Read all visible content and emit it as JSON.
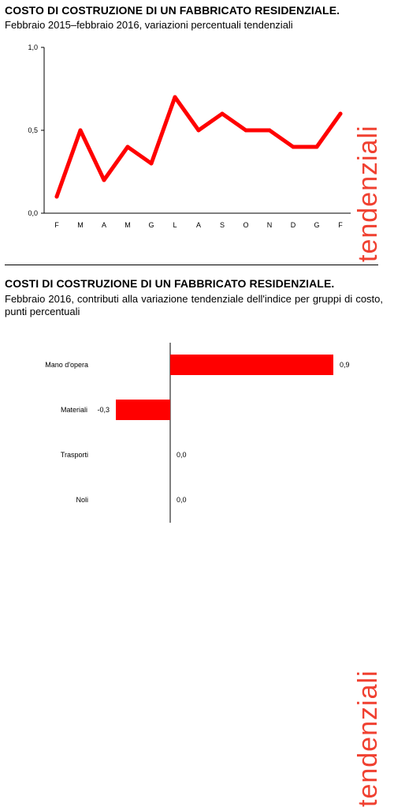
{
  "panel1": {
    "title": "COSTO DI COSTRUZIONE DI UN FABBRICATO RESIDENZIALE.",
    "subtitle": "Febbraio 2015–febbraio 2016, variazioni percentuali tendenziali",
    "side_label": "tendenziali"
  },
  "panel2": {
    "title": "COSTI DI COSTRUZIONE DI UN FABBRICATO RESIDENZIALE.",
    "subtitle": "Febbraio 2016, contributi alla variazione tendenziale dell'indice per gruppi di costo, punti percentuali",
    "side_label": "tendenziali"
  },
  "colors": {
    "series": "#ff0000",
    "side_label": "#f04030"
  },
  "chart_data": [
    {
      "type": "line",
      "categories": [
        "F",
        "M",
        "A",
        "M",
        "G",
        "L",
        "A",
        "S",
        "O",
        "N",
        "D",
        "G",
        "F"
      ],
      "values": [
        0.1,
        0.5,
        0.2,
        0.4,
        0.3,
        0.7,
        0.5,
        0.6,
        0.5,
        0.5,
        0.4,
        0.4,
        0.6
      ],
      "ylim": [
        0,
        1.0
      ],
      "yticks": [
        "0,0",
        "0,5",
        "1,0"
      ],
      "ytick_values": [
        0,
        0.5,
        1.0
      ],
      "grid": false
    },
    {
      "type": "bar",
      "orientation": "horizontal",
      "categories": [
        "Mano d'opera",
        "Materiali",
        "Trasporti",
        "Noli"
      ],
      "values": [
        0.9,
        -0.3,
        0.0,
        0.0
      ],
      "value_labels": [
        "0,9",
        "-0,3",
        "0,0",
        "0,0"
      ],
      "xlim": [
        -0.3,
        0.9
      ],
      "grid": false
    }
  ]
}
